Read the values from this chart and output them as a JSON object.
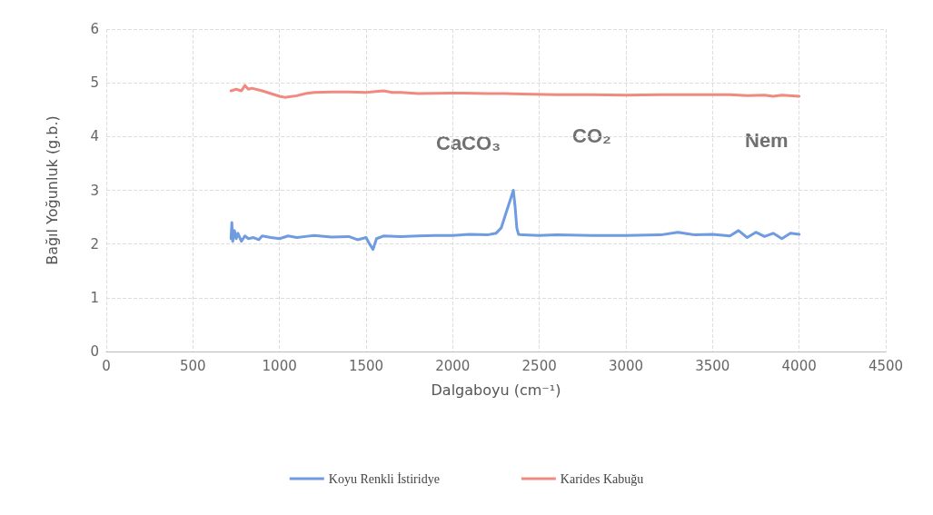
{
  "chart_data": {
    "type": "line",
    "xlabel": "Dalgaboyu (cm⁻¹)",
    "ylabel": "Bağıl Yoğunluk (g.b.)",
    "xlim": [
      0,
      4500
    ],
    "xticks": [
      0,
      500,
      1000,
      1500,
      2000,
      2500,
      3000,
      3500,
      4000,
      4500
    ],
    "ylim": [
      0,
      6
    ],
    "yticks": [
      0,
      1,
      2,
      3,
      4,
      5,
      6
    ],
    "grid": true,
    "legend": "bottom",
    "marker": "none",
    "line_style": "solid",
    "annotations": [
      "CaCO₃",
      "CO₂",
      "Nem"
    ],
    "series": [
      {
        "name": "Koyu Renkli İstiridye",
        "color": "#6f9be0",
        "x": [
          720,
          725,
          730,
          740,
          750,
          760,
          780,
          800,
          820,
          850,
          880,
          900,
          950,
          1000,
          1050,
          1100,
          1150,
          1200,
          1300,
          1400,
          1450,
          1500,
          1520,
          1540,
          1560,
          1600,
          1700,
          1800,
          1900,
          2000,
          2100,
          2200,
          2250,
          2280,
          2300,
          2320,
          2340,
          2350,
          2360,
          2370,
          2380,
          2400,
          2500,
          2600,
          2800,
          3000,
          3200,
          3300,
          3400,
          3500,
          3600,
          3650,
          3700,
          3750,
          3800,
          3850,
          3900,
          3950,
          4000
        ],
        "values": [
          2.1,
          2.4,
          2.05,
          2.25,
          2.1,
          2.2,
          2.05,
          2.15,
          2.1,
          2.12,
          2.08,
          2.15,
          2.12,
          2.1,
          2.15,
          2.12,
          2.14,
          2.16,
          2.13,
          2.14,
          2.08,
          2.12,
          2.0,
          1.9,
          2.1,
          2.15,
          2.14,
          2.15,
          2.16,
          2.16,
          2.18,
          2.17,
          2.2,
          2.3,
          2.5,
          2.7,
          2.9,
          3.0,
          2.7,
          2.3,
          2.18,
          2.17,
          2.16,
          2.17,
          2.16,
          2.16,
          2.17,
          2.22,
          2.17,
          2.18,
          2.15,
          2.25,
          2.12,
          2.22,
          2.14,
          2.2,
          2.1,
          2.2,
          2.18
        ]
      },
      {
        "name": "Karides Kabuğu",
        "color": "#f08a80",
        "x": [
          720,
          750,
          780,
          800,
          820,
          840,
          900,
          950,
          1000,
          1030,
          1100,
          1150,
          1200,
          1300,
          1400,
          1500,
          1600,
          1650,
          1700,
          1800,
          2000,
          2200,
          2300,
          2400,
          2600,
          2800,
          3000,
          3200,
          3400,
          3600,
          3700,
          3800,
          3850,
          3900,
          4000
        ],
        "values": [
          4.85,
          4.88,
          4.85,
          4.95,
          4.88,
          4.9,
          4.85,
          4.8,
          4.75,
          4.73,
          4.76,
          4.8,
          4.82,
          4.83,
          4.83,
          4.82,
          4.85,
          4.82,
          4.82,
          4.8,
          4.81,
          4.8,
          4.8,
          4.79,
          4.78,
          4.78,
          4.77,
          4.78,
          4.78,
          4.78,
          4.76,
          4.77,
          4.75,
          4.77,
          4.75
        ]
      }
    ]
  }
}
